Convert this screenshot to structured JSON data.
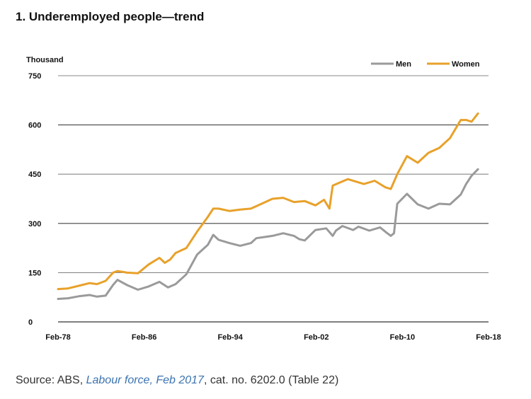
{
  "title": "1. Underemployed people—trend",
  "source": {
    "prefix": "Source: ABS, ",
    "link_text": "Labour force, Feb 2017",
    "suffix": ", cat. no. 6202.0 (Table 22)"
  },
  "chart_data": {
    "type": "line",
    "ylabel": "Thousand",
    "ylim": [
      0,
      750
    ],
    "yticks": [
      0,
      150,
      300,
      450,
      600,
      750
    ],
    "xlim": [
      1978.08,
      2018.08
    ],
    "xticks": [
      {
        "value": 1978.08,
        "label": "Feb-78"
      },
      {
        "value": 1986.08,
        "label": "Feb-86"
      },
      {
        "value": 1994.08,
        "label": "Feb-94"
      },
      {
        "value": 2002.08,
        "label": "Feb-02"
      },
      {
        "value": 2010.08,
        "label": "Feb-10"
      },
      {
        "value": 2018.08,
        "label": "Feb-18"
      }
    ],
    "grid": "horizontal",
    "legend_position": "top-right",
    "series": [
      {
        "name": "Men",
        "color": "#9a9a9a",
        "x": [
          1978.08,
          1979.0,
          1980.0,
          1981.0,
          1981.7,
          1982.5,
          1983.2,
          1983.6,
          1984.5,
          1985.5,
          1986.5,
          1987.5,
          1988.3,
          1989.0,
          1990.0,
          1991.0,
          1992.0,
          1992.5,
          1993.0,
          1994.0,
          1995.0,
          1996.0,
          1996.5,
          1998.0,
          1999.0,
          2000.0,
          2000.5,
          2001.0,
          2002.0,
          2003.0,
          2003.6,
          2003.9,
          2004.5,
          2005.5,
          2006.0,
          2007.0,
          2008.0,
          2008.6,
          2009.0,
          2009.3,
          2009.6,
          2010.5,
          2011.5,
          2012.5,
          2013.5,
          2014.5,
          2015.5,
          2016.0,
          2016.5,
          2017.1
        ],
        "y": [
          70,
          72,
          78,
          82,
          77,
          80,
          113,
          128,
          112,
          98,
          108,
          122,
          105,
          115,
          145,
          205,
          235,
          265,
          250,
          240,
          232,
          240,
          255,
          262,
          270,
          262,
          252,
          248,
          280,
          285,
          262,
          278,
          292,
          280,
          290,
          278,
          288,
          272,
          262,
          270,
          360,
          390,
          358,
          345,
          360,
          358,
          388,
          420,
          445,
          465
        ]
      },
      {
        "name": "Women",
        "color": "#e8a12a",
        "x": [
          1978.08,
          1979.0,
          1980.0,
          1981.0,
          1981.7,
          1982.5,
          1983.2,
          1983.6,
          1984.5,
          1985.5,
          1986.5,
          1987.5,
          1988.0,
          1988.5,
          1989.0,
          1990.0,
          1991.0,
          1992.0,
          1992.5,
          1993.0,
          1994.0,
          1995.0,
          1996.0,
          1997.0,
          1998.0,
          1999.0,
          2000.0,
          2001.0,
          2002.0,
          2002.8,
          2003.3,
          2003.6,
          2005.0,
          2006.5,
          2007.5,
          2008.5,
          2009.0,
          2009.6,
          2010.5,
          2011.5,
          2012.5,
          2013.5,
          2014.5,
          2015.5,
          2016.0,
          2016.5,
          2017.1
        ],
        "y": [
          100,
          102,
          110,
          118,
          115,
          125,
          150,
          155,
          150,
          148,
          175,
          195,
          180,
          190,
          210,
          225,
          275,
          320,
          345,
          345,
          338,
          342,
          345,
          360,
          375,
          378,
          365,
          368,
          355,
          372,
          345,
          415,
          435,
          420,
          430,
          410,
          405,
          450,
          505,
          485,
          515,
          530,
          560,
          615,
          615,
          610,
          635
        ]
      }
    ]
  }
}
